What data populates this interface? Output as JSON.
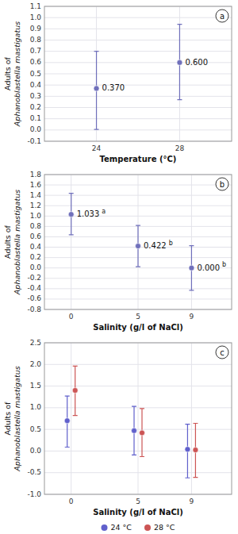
{
  "chart_data": [
    {
      "type": "scatter",
      "title": "a",
      "x": [
        24,
        28
      ],
      "values": [
        0.37,
        0.6
      ],
      "ci_low": [
        0.005,
        0.27
      ],
      "ci_high": [
        0.7,
        0.94
      ],
      "color": "#7070bb",
      "xlim": [
        21.5,
        30.5
      ],
      "xticks": [
        24,
        28
      ],
      "ylim": [
        -0.1,
        1.1
      ],
      "yticks": [
        -0.1,
        {
          "value": 0,
          "label": "0.0"
        },
        0.1,
        0.2,
        0.3,
        0.4,
        0.5,
        0.6,
        0.7,
        0.8,
        0.9,
        {
          "value": 1,
          "label": "1.0"
        },
        1.1
      ],
      "xlabel": "Temperature (°C)",
      "ylabel": [
        "Adults of",
        "Aphanoblastella mastigatus"
      ],
      "grid": true,
      "data_labels": true,
      "value_labels": [
        "0.370",
        "0.600"
      ]
    },
    {
      "type": "scatter",
      "title": "b",
      "x": [
        0,
        5,
        9
      ],
      "values": [
        1.033,
        0.422,
        0.0
      ],
      "ci_low": [
        0.64,
        0.025,
        -0.43
      ],
      "ci_high": [
        1.44,
        0.82,
        0.43
      ],
      "color": "#7070bb",
      "xlim": [
        -2,
        12
      ],
      "xticks": [
        0,
        5,
        9
      ],
      "ylim": [
        -0.8,
        1.8
      ],
      "yticks": [
        -0.8,
        -0.6,
        -0.4,
        -0.2,
        {
          "value": 0,
          "label": "0.0"
        },
        0.2,
        0.4,
        0.6,
        0.8,
        {
          "value": 1,
          "label": "1.0"
        },
        1.2,
        1.4,
        1.6,
        1.8
      ],
      "xlabel": "Salinity (g/l of NaCl)",
      "ylabel": [
        "Adults of",
        "Aphanoblastella mastigatus"
      ],
      "grid": true,
      "data_labels": true,
      "value_labels": [
        "1.033",
        "0.422",
        "0.000"
      ],
      "annotations": [
        "a",
        "b",
        "b"
      ]
    },
    {
      "type": "scatter",
      "title": "c",
      "x": [
        0,
        5,
        9
      ],
      "series": [
        {
          "name": "24 °C",
          "color": "#6060cc",
          "values": [
            0.7,
            0.47,
            0.04
          ],
          "ci_low": [
            0.09,
            -0.09,
            -0.62
          ],
          "ci_high": [
            1.27,
            1.03,
            0.62
          ]
        },
        {
          "name": "28 °C",
          "color": "#cc5555",
          "values": [
            1.4,
            0.42,
            0.025
          ],
          "ci_low": [
            0.82,
            -0.13,
            -0.61
          ],
          "ci_high": [
            1.96,
            0.98,
            0.64
          ]
        }
      ],
      "xlim": [
        -2,
        12
      ],
      "xticks": [
        0,
        5,
        9
      ],
      "ylim": [
        -1.0,
        2.5
      ],
      "yticks": [
        {
          "value": -1,
          "label": "-1.0"
        },
        -0.5,
        {
          "value": 0,
          "label": "0.0"
        },
        0.5,
        {
          "value": 1,
          "label": "1.0"
        },
        1.5,
        {
          "value": 2,
          "label": "2.0"
        },
        2.5
      ],
      "xlabel": "Salinity (g/l of NaCl)",
      "ylabel": [
        "Adults of",
        "Aphanoblastella mastigatus"
      ],
      "grid": true,
      "legend": "bottom"
    }
  ]
}
